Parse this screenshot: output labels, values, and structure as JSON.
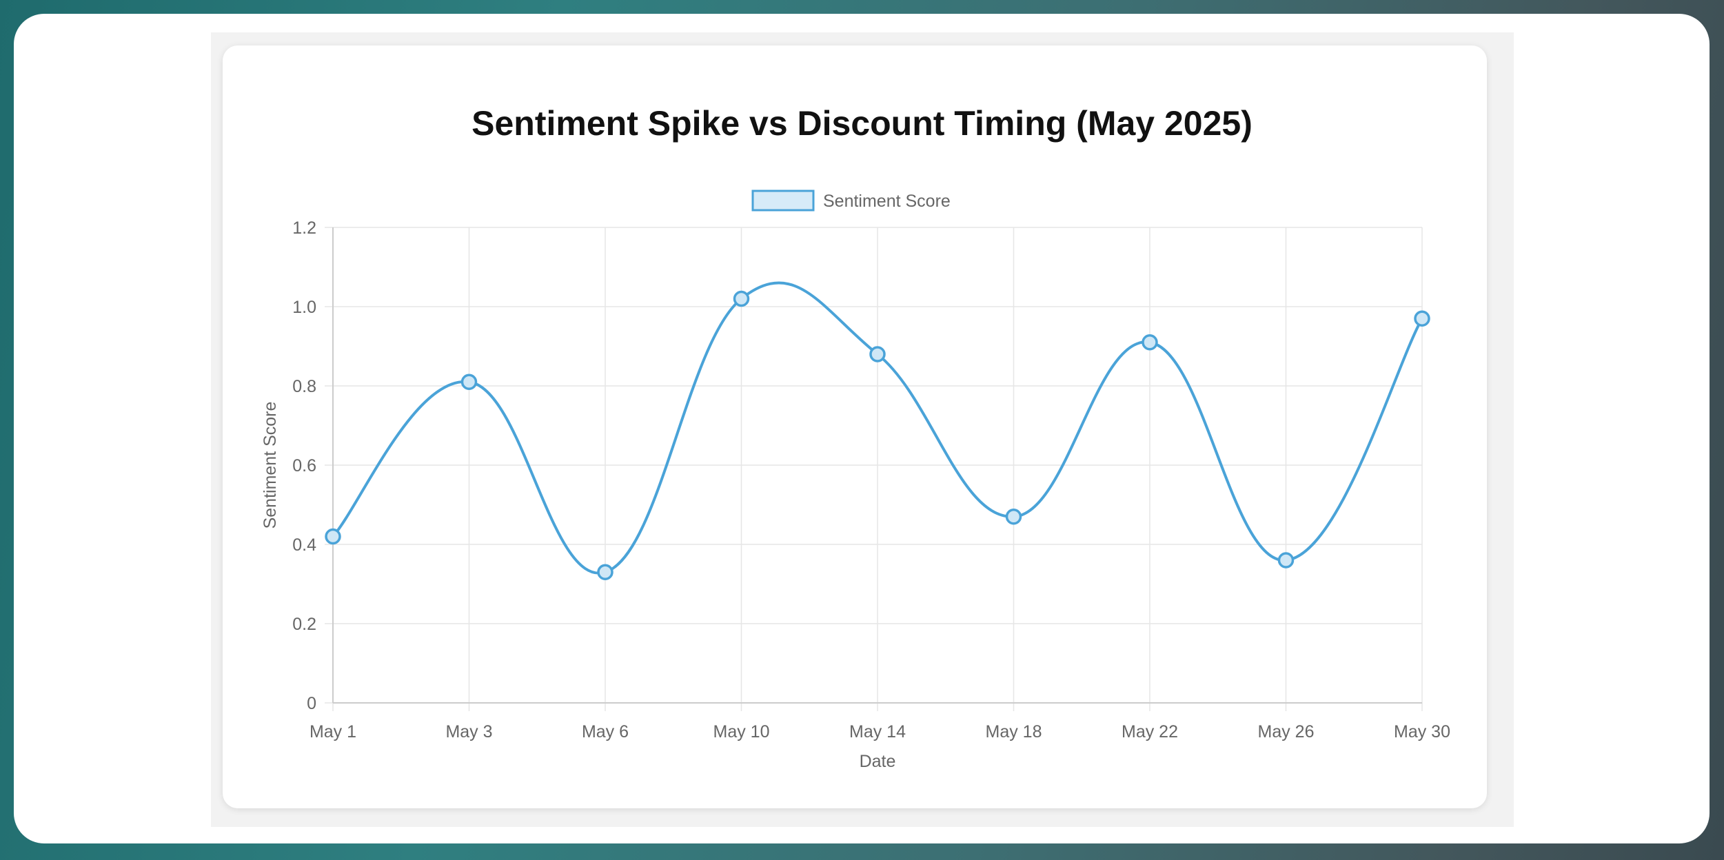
{
  "chart_data": {
    "type": "line",
    "title": "Sentiment Spike vs Discount Timing (May 2025)",
    "xlabel": "Date",
    "ylabel": "Sentiment Score",
    "categories": [
      "May 1",
      "May 3",
      "May 6",
      "May 10",
      "May 14",
      "May 18",
      "May 22",
      "May 26",
      "May 30"
    ],
    "series": [
      {
        "name": "Sentiment Score",
        "values": [
          0.42,
          0.81,
          0.33,
          1.02,
          0.88,
          0.47,
          0.91,
          0.36,
          0.97
        ]
      }
    ],
    "ylim": [
      0,
      1.2
    ],
    "yticks": [
      "0",
      "0.2",
      "0.4",
      "0.6",
      "0.8",
      "1.0",
      "1.2"
    ],
    "grid": true,
    "legend_position": "top-center",
    "line_style": "smooth",
    "colors": {
      "line": "#4aa3d8",
      "point_fill": "#cfe7f6",
      "legend_fill": "#d6ebf8",
      "grid": "#e6e6e6",
      "axis": "#cccccc"
    }
  }
}
